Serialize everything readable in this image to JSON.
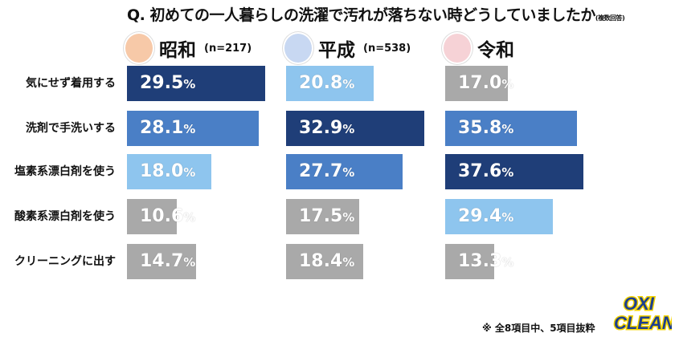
{
  "chart_data": {
    "type": "bar",
    "title": "Q. 初めての一人暮らしの洗濯で汚れが落ちない時どうしていましたか",
    "subtitle": "(複数回答)",
    "categories": [
      "気にせず着用する",
      "洗剤で手洗いする",
      "塩素系漂白剤を使う",
      "酸素系漂白剤を使う",
      "クリーニングに出す"
    ],
    "unit": "%",
    "series": [
      {
        "name": "昭和",
        "n": "(n=217)",
        "values": [
          29.5,
          28.1,
          18.0,
          10.6,
          14.7
        ]
      },
      {
        "name": "平成",
        "n": "(n=538)",
        "values": [
          20.8,
          32.9,
          27.7,
          17.5,
          18.4
        ]
      },
      {
        "name": "令和",
        "n": "",
        "values": [
          17.0,
          35.8,
          37.6,
          29.4,
          13.3
        ]
      }
    ],
    "rank_colors": [
      "#1f3e78",
      "#4a7fc6",
      "#8ec5ee",
      "#a9a9a9"
    ],
    "avatar_colors": [
      "#f7c9a8",
      "#c8d8f2",
      "#f6d2d6"
    ]
  },
  "footnote": "※ 全8項目中、5項目抜粋",
  "logo": "OXI CLEAN"
}
